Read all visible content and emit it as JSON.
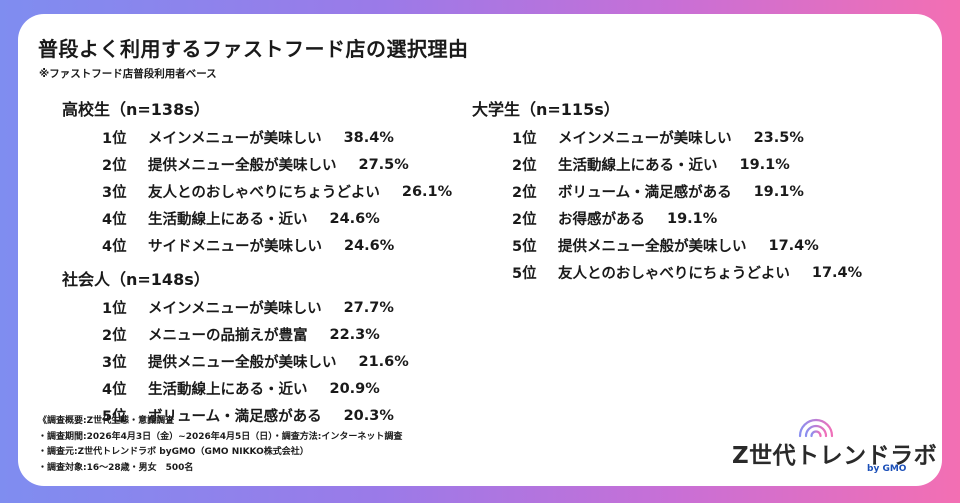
{
  "title": "普段よく利用するファストフード店の選択理由",
  "subtitle": "※ファストフード店普段利用者ベース",
  "groups": {
    "highschool": {
      "heading": "高校生（n=138s）",
      "items": [
        {
          "rank": "1位",
          "reason": "メインメニューが美味しい",
          "pct": "38.4%"
        },
        {
          "rank": "2位",
          "reason": "提供メニュー全般が美味しい",
          "pct": "27.5%"
        },
        {
          "rank": "3位",
          "reason": "友人とのおしゃべりにちょうどよい",
          "pct": "26.1%"
        },
        {
          "rank": "4位",
          "reason": "生活動線上にある・近い",
          "pct": "24.6%"
        },
        {
          "rank": "4位",
          "reason": "サイドメニューが美味しい",
          "pct": "24.6%"
        }
      ]
    },
    "worker": {
      "heading": "社会人（n=148s）",
      "items": [
        {
          "rank": "1位",
          "reason": "メインメニューが美味しい",
          "pct": "27.7%"
        },
        {
          "rank": "2位",
          "reason": "メニューの品揃えが豊富",
          "pct": "22.3%"
        },
        {
          "rank": "3位",
          "reason": "提供メニュー全般が美味しい",
          "pct": "21.6%"
        },
        {
          "rank": "4位",
          "reason": "生活動線上にある・近い",
          "pct": "20.9%"
        },
        {
          "rank": "5位",
          "reason": "ボリューム・満足感がある",
          "pct": "20.3%"
        }
      ]
    },
    "university": {
      "heading": "大学生（n=115s）",
      "items": [
        {
          "rank": "1位",
          "reason": "メインメニューが美味しい",
          "pct": "23.5%"
        },
        {
          "rank": "2位",
          "reason": "生活動線上にある・近い",
          "pct": "19.1%"
        },
        {
          "rank": "2位",
          "reason": "ボリューム・満足感がある",
          "pct": "19.1%"
        },
        {
          "rank": "2位",
          "reason": "お得感がある",
          "pct": "19.1%"
        },
        {
          "rank": "5位",
          "reason": "提供メニュー全般が美味しい",
          "pct": "17.4%"
        },
        {
          "rank": "5位",
          "reason": "友人とのおしゃべりにちょうどよい",
          "pct": "17.4%"
        }
      ]
    }
  },
  "footer": {
    "overview": "《調査概要:Z世代生態・意識調査",
    "period": "・調査期間:2026年4月3日（金）~2026年4月5日（日）・調査方法:インターネット調査",
    "source": "・調査元:Z世代トレンドラボ byGMO（GMO NIKKO株式会社）",
    "target": "・調査対象:16～28歳・男女　500名"
  },
  "logo": {
    "text": "Z世代トレンドラボ",
    "by": "by GMO",
    "icon": "signal-icon"
  },
  "colors": {
    "bg_gradient_start": "#7f8df0",
    "bg_gradient_end": "#f36fb3",
    "card": "#ffffff",
    "text": "#1a1a1a",
    "gmo_blue": "#1b4fb8"
  }
}
